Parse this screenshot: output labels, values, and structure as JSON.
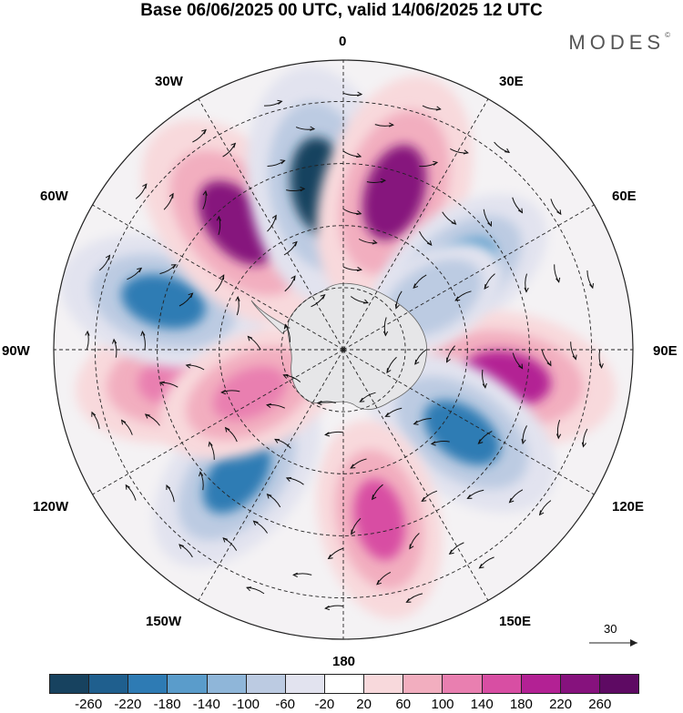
{
  "title": "Base 06/06/2025 00 UTC, valid 14/06/2025 12 UTC",
  "brand": "MODES",
  "brand_mark": "©",
  "longitude_labels": {
    "lon_0": "0",
    "lon_30e": "30E",
    "lon_60e": "60E",
    "lon_90e": "90E",
    "lon_120e": "120E",
    "lon_150e": "150E",
    "lon_180": "180",
    "lon_150w": "150W",
    "lon_120w": "120W",
    "lon_90w": "90W",
    "lon_60w": "60W",
    "lon_30w": "30W"
  },
  "reference_vector": {
    "value": "30"
  },
  "colorbar": {
    "colors": [
      "#17425f",
      "#1f5f8e",
      "#2e7bb4",
      "#5a9ccb",
      "#8fb6d9",
      "#bccbe2",
      "#e2e3ef",
      "#ffffff",
      "#f8d9dc",
      "#f2aebf",
      "#e97fb0",
      "#d84ea3",
      "#b32194",
      "#86127d",
      "#5e0a63"
    ],
    "tick_labels": [
      "-260",
      "-220",
      "-180",
      "-140",
      "-100",
      "-60",
      "-20",
      "20",
      "60",
      "100",
      "140",
      "180",
      "220",
      "260"
    ]
  },
  "anomaly_centers": [
    {
      "lon": -100,
      "lat": -50,
      "value": 180,
      "color": "#e97fb0"
    },
    {
      "lon": -75,
      "lat": -45,
      "value": -180,
      "color": "#2e7bb4"
    },
    {
      "lon": -40,
      "lat": -50,
      "value": 240,
      "color": "#86127d"
    },
    {
      "lon": -8,
      "lat": -50,
      "value": -240,
      "color": "#17425f"
    },
    {
      "lon": 18,
      "lat": -50,
      "value": 240,
      "color": "#86127d"
    },
    {
      "lon": 55,
      "lat": -55,
      "value": -140,
      "color": "#5a9ccb"
    },
    {
      "lon": 100,
      "lat": -50,
      "value": 200,
      "color": "#b32194"
    },
    {
      "lon": 125,
      "lat": -55,
      "value": -180,
      "color": "#2e7bb4"
    },
    {
      "lon": 168,
      "lat": -48,
      "value": 160,
      "color": "#d84ea3"
    },
    {
      "lon": -140,
      "lat": -50,
      "value": -180,
      "color": "#2e7bb4"
    },
    {
      "lon": -115,
      "lat": -65,
      "value": 140,
      "color": "#e97fb0"
    },
    {
      "lon": 60,
      "lat": -65,
      "value": -60,
      "color": "#bccbe2"
    }
  ]
}
